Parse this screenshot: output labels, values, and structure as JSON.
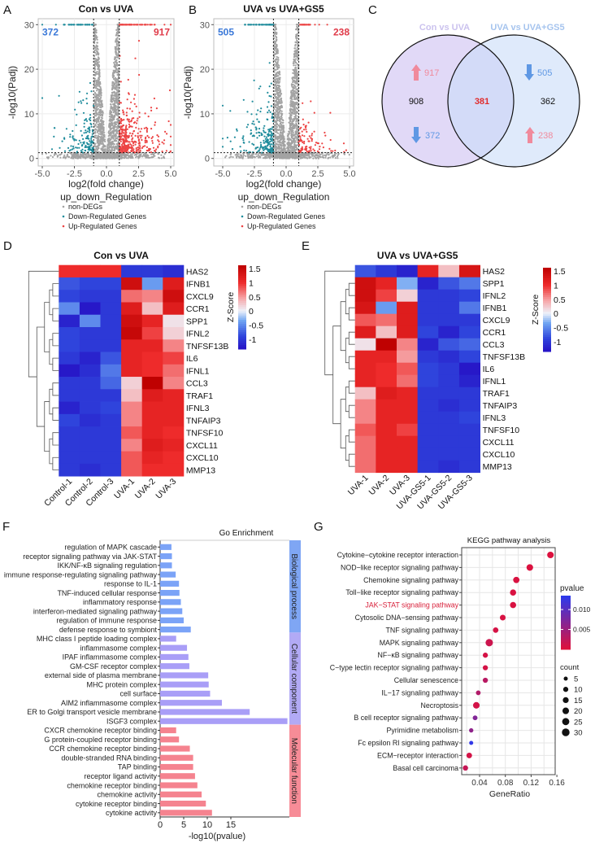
{
  "panel_letters": {
    "A": "A",
    "B": "B",
    "C": "C",
    "D": "D",
    "E": "E",
    "F": "F",
    "G": "G"
  },
  "chart_data": {
    "volcano_A": {
      "type": "scatter",
      "title": "Con vs UVA",
      "xlabel": "log2(fold change)",
      "ylabel": "-log10(Padj)",
      "xlim": [
        -5.5,
        5.5
      ],
      "ylim": [
        -1,
        31
      ],
      "xticks": [
        "-5.0",
        "-2.5",
        "0.0",
        "2.5",
        "5.0"
      ],
      "yticks": [
        "0",
        "10",
        "20",
        "30"
      ],
      "fc_threshold": [
        -1,
        1
      ],
      "padj_threshold": 1.3,
      "down_count": "372",
      "up_count": "917",
      "legend_title": "up_down_Regulation",
      "legend": [
        {
          "name": "non-DEGs",
          "color": "#a3a3a3"
        },
        {
          "name": "Down-Regulated Genes",
          "color": "#1f8c9c"
        },
        {
          "name": "Up-Regulated Genes",
          "color": "#ec4444"
        }
      ],
      "grid": true
    },
    "volcano_B": {
      "type": "scatter",
      "title": "UVA vs UVA+GS5",
      "xlabel": "log2(fold change)",
      "ylabel": "-log10(Padj)",
      "xlim": [
        -5.5,
        5.5
      ],
      "ylim": [
        -1,
        31
      ],
      "xticks": [
        "-5.0",
        "-2.5",
        "0.0",
        "2.5",
        "5.0"
      ],
      "yticks": [
        "0",
        "10",
        "20",
        "30"
      ],
      "fc_threshold": [
        -1,
        1
      ],
      "padj_threshold": 1.3,
      "down_count": "505",
      "up_count": "238",
      "legend_title": "up_down_Regulation",
      "legend": [
        {
          "name": "non-DEGs",
          "color": "#a3a3a3"
        },
        {
          "name": "Down-Regulated Genes",
          "color": "#1f8c9c"
        },
        {
          "name": "Up-Regulated Genes",
          "color": "#ec4444"
        }
      ],
      "grid": true
    },
    "venn_C": {
      "type": "venn",
      "sets": [
        {
          "name": "Con vs UVA",
          "color": "#cdbff2",
          "only": "908",
          "up": "917",
          "down": "372"
        },
        {
          "name": "UVA vs UVA+GS5",
          "color": "#c9dcf8",
          "only": "362",
          "up": "238",
          "down": "505"
        }
      ],
      "intersection": "381",
      "up_color": "#f08a9c",
      "down_color": "#5f98e4",
      "intersection_color": "#e02c2c"
    },
    "heatmap_D": {
      "type": "heatmap",
      "title": "Con vs UVA",
      "columns": [
        "Control-1",
        "Control-2",
        "Control-3",
        "UVA-1",
        "UVA-2",
        "UVA-3"
      ],
      "rows": [
        "HAS2",
        "IFNB1",
        "CXCL9",
        "CCR1",
        "SPP1",
        "IFNL2",
        "TNFSF13B",
        "IL6",
        "IFNL1",
        "CCL3",
        "TRAF1",
        "IFNL3",
        "TNFAIP3",
        "TNFSF10",
        "CXCL11",
        "CXCL10",
        "MMP13"
      ],
      "values": [
        [
          1.0,
          1.0,
          1.0,
          -1.0,
          -1.0,
          -1.1
        ],
        [
          -0.8,
          -0.9,
          -0.9,
          1.4,
          -0.4,
          1.2
        ],
        [
          -0.9,
          -1.0,
          -1.0,
          0.7,
          0.6,
          1.4
        ],
        [
          -0.5,
          -1.3,
          -1.0,
          1.2,
          0.3,
          1.2
        ],
        [
          -1.2,
          -0.5,
          -1.0,
          1.4,
          1.1,
          0.1
        ],
        [
          -0.9,
          -1.0,
          -1.0,
          1.5,
          0.9,
          0.2
        ],
        [
          -0.9,
          -1.0,
          -1.0,
          1.1,
          1.1,
          0.6
        ],
        [
          -1.0,
          -1.2,
          -0.8,
          1.1,
          1.0,
          0.9
        ],
        [
          -1.3,
          -1.1,
          -0.6,
          1.1,
          1.0,
          0.7
        ],
        [
          -1.0,
          -1.0,
          -0.7,
          0.2,
          1.6,
          0.6
        ],
        [
          -1.0,
          -1.0,
          -1.0,
          0.3,
          1.2,
          1.1
        ],
        [
          -1.2,
          -1.0,
          -0.9,
          0.6,
          1.1,
          1.1
        ],
        [
          -0.9,
          -1.1,
          -1.0,
          0.6,
          1.1,
          1.1
        ],
        [
          -1.0,
          -1.0,
          -1.0,
          0.8,
          1.1,
          1.0
        ],
        [
          -1.0,
          -1.0,
          -1.0,
          0.6,
          1.2,
          1.1
        ],
        [
          -1.0,
          -1.0,
          -1.0,
          0.8,
          1.1,
          1.0
        ],
        [
          -1.0,
          -1.1,
          -1.0,
          0.8,
          1.0,
          1.0
        ]
      ],
      "legend_title": "Z-Score",
      "legend_ticks": [
        "1.5",
        "1",
        "0.5",
        "0",
        "-0.5",
        "-1"
      ],
      "legend_values": [
        1.5,
        1,
        0.5,
        0,
        -0.5,
        -1
      ],
      "zlim": [
        -1.35,
        1.62
      ]
    },
    "heatmap_E": {
      "type": "heatmap",
      "title": "UVA vs UVA+GS5",
      "columns": [
        "UVA-1",
        "UVA-2",
        "UVA-3",
        "UVA-GS5-1",
        "UVA-GS5-2",
        "UVA-GS5-3"
      ],
      "rows": [
        "HAS2",
        "SPP1",
        "IFNL2",
        "IFNB1",
        "CXCL9",
        "CCR1",
        "CCL3",
        "TNFSF13B",
        "IL6",
        "IFNL1",
        "TRAF1",
        "TNFAIP3",
        "IFNL3",
        "TNFSF10",
        "CXCL11",
        "CXCL10",
        "MMP13"
      ],
      "values": [
        [
          -0.8,
          -1.0,
          -1.2,
          1.1,
          0.3,
          1.3
        ],
        [
          1.4,
          1.1,
          -0.3,
          -1.2,
          -0.8,
          -0.6
        ],
        [
          1.4,
          0.9,
          0.2,
          -1.0,
          -1.0,
          -0.9
        ],
        [
          1.3,
          -0.4,
          1.2,
          -1.0,
          -1.0,
          -0.6
        ],
        [
          0.8,
          0.7,
          1.2,
          -1.0,
          -1.0,
          -1.0
        ],
        [
          1.2,
          0.3,
          1.2,
          -0.9,
          -1.2,
          -0.9
        ],
        [
          0.1,
          1.6,
          0.6,
          -1.2,
          -0.8,
          -0.7
        ],
        [
          1.1,
          1.1,
          0.5,
          -1.0,
          -1.1,
          -0.9
        ],
        [
          1.1,
          1.0,
          0.8,
          -0.9,
          -1.0,
          -1.3
        ],
        [
          1.1,
          1.0,
          0.7,
          -0.9,
          -1.0,
          -1.2
        ],
        [
          0.3,
          1.2,
          1.1,
          -1.0,
          -1.0,
          -1.0
        ],
        [
          0.6,
          1.1,
          1.1,
          -1.0,
          -1.1,
          -1.0
        ],
        [
          0.6,
          1.1,
          1.1,
          -1.0,
          -1.0,
          -0.9
        ],
        [
          0.8,
          1.1,
          0.9,
          -1.0,
          -1.0,
          -1.0
        ],
        [
          0.7,
          1.1,
          1.1,
          -1.0,
          -1.0,
          -1.0
        ],
        [
          0.7,
          1.1,
          1.1,
          -1.0,
          -1.0,
          -1.0
        ],
        [
          0.7,
          1.1,
          1.1,
          -1.0,
          -1.1,
          -1.0
        ]
      ],
      "legend_title": "Z-Score",
      "legend_ticks": [
        "1.5",
        "1",
        "0.5",
        "0",
        "-0.5",
        "-1"
      ],
      "legend_values": [
        1.5,
        1,
        0.5,
        0,
        -0.5,
        -1
      ],
      "zlim": [
        -1.35,
        1.62
      ]
    },
    "go_F": {
      "type": "bar",
      "orientation": "horizontal",
      "title": "Go Enrichment",
      "xlabel": "-log10(pvalue)",
      "xticks": [
        "0",
        "5",
        "10",
        "15"
      ],
      "xlim": [
        0,
        27.5
      ],
      "groups": [
        {
          "name": "Biological process",
          "color": "#7ba3f7",
          "strip": "#7fa6f4",
          "categories": [
            "regulation of MAPK cascade",
            "receptor signaling pathway via JAK-STAT",
            "IKK/NF-κB signaling regulation",
            "immune response-regulating signaling pathway",
            "response to IL-1",
            "TNF-induced cellular response",
            "inflammatory response",
            "interferon-mediated signaling pathway",
            "regulation of immune response",
            "defense response to symbiont"
          ],
          "values": [
            2.4,
            2.5,
            2.5,
            3.3,
            4.0,
            4.1,
            4.4,
            4.7,
            5.0,
            6.5
          ]
        },
        {
          "name": "Cellular component",
          "color": "#a99ef7",
          "strip": "#b2aaf5",
          "categories": [
            "MHC class I peptide loading complex",
            "inflammasome complex",
            "IPAF inflammasome complex",
            "GM-CSF receptor complex",
            "external side of plasma membrane",
            "MHC protein complex",
            "cell surface",
            "AIM2 inflammasome complex",
            "ER to Golgi transport vesicle membrane",
            "ISGF3 complex"
          ],
          "values": [
            3.4,
            5.7,
            6.0,
            6.2,
            10.2,
            10.3,
            10.6,
            13.1,
            19.0,
            27.0
          ]
        },
        {
          "name": "Molecular function",
          "color": "#f5838f",
          "strip": "#f78c97",
          "categories": [
            "CXCR chemokine receptor binding",
            "G protein-coupled receptor binding",
            "CCR chemokine receptor binding",
            "double-stranded RNA binding",
            "TAP binding",
            "receptor ligand activity",
            "chemokine receptor binding",
            "chemokine activity",
            "cytokine receptor binding",
            "cytokine activity"
          ],
          "values": [
            3.4,
            4.0,
            6.3,
            7.0,
            7.0,
            7.4,
            7.9,
            8.8,
            9.7,
            11.0
          ]
        }
      ]
    },
    "kegg_G": {
      "type": "scatter",
      "title": "KEGG pathway analysis",
      "xlabel": "GeneRatio",
      "xticks": [
        "0.04",
        "0.08",
        "0.12",
        "0.16"
      ],
      "xtick_values": [
        0.04,
        0.08,
        0.12,
        0.16
      ],
      "xlim": [
        0.012,
        0.157
      ],
      "grid": true,
      "highlight_color": "#d8203a",
      "pathways": [
        {
          "name": "Cytokine−cytokine receptor interaction",
          "ratio": 0.15,
          "count": 20,
          "pvalue": 0.0003
        },
        {
          "name": "NOD−like receptor signaling pathway",
          "ratio": 0.118,
          "count": 20,
          "pvalue": 0.0004
        },
        {
          "name": "Chemokine signaling pathway",
          "ratio": 0.097,
          "count": 18,
          "pvalue": 0.0005
        },
        {
          "name": "Toll−like receptor signaling pathway",
          "ratio": 0.092,
          "count": 17,
          "pvalue": 0.0005
        },
        {
          "name": "JAK−STAT signaling pathway",
          "ratio": 0.092,
          "count": 17,
          "pvalue": 0.0005,
          "highlight": true
        },
        {
          "name": "Cytosolic DNA−sensing pathway",
          "ratio": 0.076,
          "count": 14,
          "pvalue": 0.0006
        },
        {
          "name": "TNF signaling pathway",
          "ratio": 0.065,
          "count": 12,
          "pvalue": 0.0008
        },
        {
          "name": "MAPK signaling pathway",
          "ratio": 0.055,
          "count": 27,
          "pvalue": 0.0015
        },
        {
          "name": "NF−κB signaling pathway",
          "ratio": 0.049,
          "count": 10,
          "pvalue": 0.0008
        },
        {
          "name": "C−type lectin receptor signaling pathway",
          "ratio": 0.049,
          "count": 10,
          "pvalue": 0.0009
        },
        {
          "name": "Cellular senescence",
          "ratio": 0.049,
          "count": 10,
          "pvalue": 0.003
        },
        {
          "name": "IL−17 signaling pathway",
          "ratio": 0.038,
          "count": 8,
          "pvalue": 0.0035
        },
        {
          "name": "Necroptosis",
          "ratio": 0.035,
          "count": 20,
          "pvalue": 0.001
        },
        {
          "name": "B cell receptor signaling pathway",
          "ratio": 0.033,
          "count": 8,
          "pvalue": 0.007
        },
        {
          "name": "Pyrimidine metabolism",
          "ratio": 0.027,
          "count": 6,
          "pvalue": 0.006
        },
        {
          "name": "Fc epsilon RI signaling pathway",
          "ratio": 0.027,
          "count": 5,
          "pvalue": 0.013
        },
        {
          "name": "ECM−receptor interaction",
          "ratio": 0.024,
          "count": 13,
          "pvalue": 0.001
        },
        {
          "name": "Basal cell carcinoma",
          "ratio": 0.018,
          "count": 11,
          "pvalue": 0.002
        }
      ],
      "color_legend_title": "pvalue",
      "color_ticks": [
        "0.010",
        "0.005"
      ],
      "color_tick_values": [
        0.01,
        0.005
      ],
      "pvalue_range": [
        0.0,
        0.0135
      ],
      "pvalue_colors": [
        "#e0103a",
        "#2a3aee"
      ],
      "size_legend_title": "count",
      "size_ticks": [
        "5",
        "10",
        "15",
        "20",
        "25",
        "30"
      ],
      "size_tick_values": [
        5,
        10,
        15,
        20,
        25,
        30
      ]
    }
  }
}
